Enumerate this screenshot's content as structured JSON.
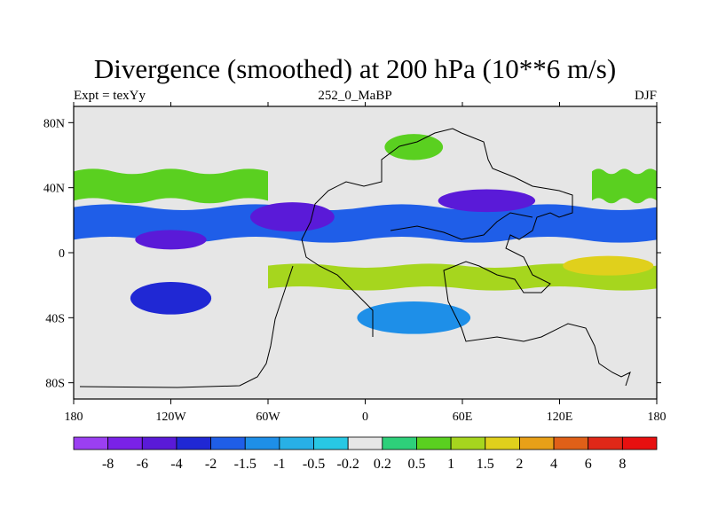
{
  "chart_data": {
    "type": "heatmap",
    "title": "Divergence (smoothed) at 200 hPa (10**6 m/s)",
    "subtitle_left": "Expt = texYy",
    "subtitle_center": "252_0_MaBP",
    "subtitle_right": "DJF",
    "xlim": [
      -180,
      180
    ],
    "ylim": [
      -90,
      90
    ],
    "x_ticks": [
      {
        "value": -180,
        "label": "180"
      },
      {
        "value": -120,
        "label": "120W"
      },
      {
        "value": -60,
        "label": "60W"
      },
      {
        "value": 0,
        "label": "0"
      },
      {
        "value": 60,
        "label": "60E"
      },
      {
        "value": 120,
        "label": "120E"
      },
      {
        "value": 180,
        "label": "180"
      }
    ],
    "y_ticks": [
      {
        "value": 80,
        "label": "80N"
      },
      {
        "value": 40,
        "label": "40N"
      },
      {
        "value": 0,
        "label": "0"
      },
      {
        "value": -40,
        "label": "40S"
      },
      {
        "value": -80,
        "label": "80S"
      }
    ],
    "colorbar": {
      "boundaries": [
        "-8",
        "-6",
        "-4",
        "-2",
        "-1.5",
        "-1",
        "-0.5",
        "-0.2",
        "0.2",
        "0.5",
        "1",
        "1.5",
        "2",
        "4",
        "6",
        "8"
      ],
      "colors": [
        "#9b3ff2",
        "#7a22e8",
        "#5a1ad8",
        "#2028d4",
        "#1f5ee8",
        "#1e8fe8",
        "#28b0e6",
        "#28c8e4",
        "#e6e6e6",
        "#2ed07a",
        "#5ad020",
        "#a6d61e",
        "#e0d01c",
        "#e8a018",
        "#e06018",
        "#e02818",
        "#e81010"
      ]
    },
    "fields": [
      {
        "name": "band",
        "level": -1.5,
        "lat": [
          28,
          8
        ],
        "lon": [
          -180,
          180
        ],
        "waviness": 8
      },
      {
        "name": "band",
        "level": 1.5,
        "lat": [
          -8,
          -22
        ],
        "lon": [
          -60,
          180
        ],
        "waviness": 6
      },
      {
        "name": "band",
        "level": 1,
        "lat": [
          50,
          32
        ],
        "lon": [
          -180,
          -60
        ],
        "waviness": 5
      },
      {
        "name": "band",
        "level": 1,
        "lat": [
          50,
          32
        ],
        "lon": [
          140,
          180
        ],
        "waviness": 5
      },
      {
        "name": "blob",
        "level": -4,
        "lon": -45,
        "lat": 22,
        "rx": 26,
        "ry": 9
      },
      {
        "name": "blob",
        "level": -4,
        "lon": 75,
        "lat": 32,
        "rx": 30,
        "ry": 7
      },
      {
        "name": "blob",
        "level": -4,
        "lon": -120,
        "lat": 8,
        "rx": 22,
        "ry": 6
      },
      {
        "name": "blob",
        "level": -2,
        "lon": -120,
        "lat": -28,
        "rx": 25,
        "ry": 10
      },
      {
        "name": "blob",
        "level": -1,
        "lon": 30,
        "lat": -40,
        "rx": 35,
        "ry": 10
      },
      {
        "name": "blob",
        "level": 2,
        "lon": 150,
        "lat": -8,
        "rx": 28,
        "ry": 6
      },
      {
        "name": "blob",
        "level": 1,
        "lon": 30,
        "lat": 65,
        "rx": 18,
        "ry": 8
      }
    ]
  }
}
